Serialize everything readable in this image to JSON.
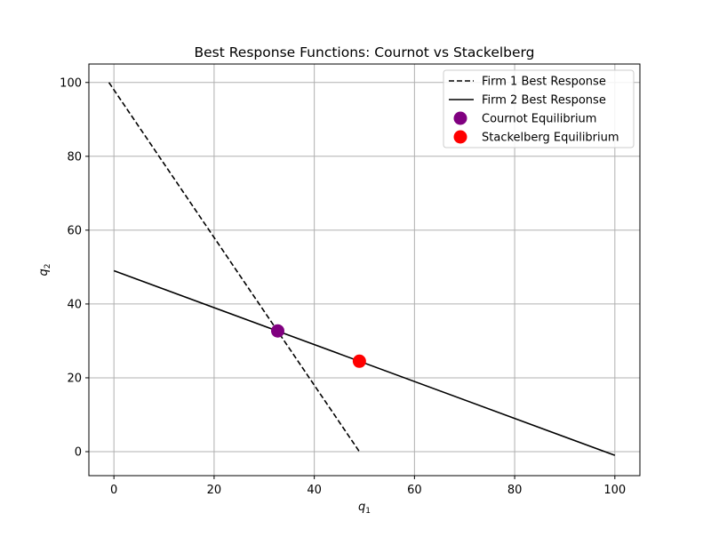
{
  "chart_data": {
    "type": "line",
    "title": "Best Response Functions: Cournot vs Stackelberg",
    "xlabel": "q",
    "xlabel_sub": "1",
    "ylabel": "q",
    "ylabel_sub": "2",
    "xlim": [
      -5,
      105
    ],
    "ylim": [
      -6.5,
      105
    ],
    "xticks": [
      0,
      20,
      40,
      60,
      80,
      100
    ],
    "yticks": [
      0,
      20,
      40,
      60,
      80,
      100
    ],
    "grid": true,
    "legend_position": "top-right",
    "series": [
      {
        "name": "Firm 1 Best Response",
        "kind": "line",
        "style": "dashed",
        "color": "#000000",
        "x": [
          -1,
          49
        ],
        "y": [
          100,
          0
        ]
      },
      {
        "name": "Firm 2 Best Response",
        "kind": "line",
        "style": "solid",
        "color": "#000000",
        "x": [
          0,
          100
        ],
        "y": [
          49,
          -1
        ]
      },
      {
        "name": "Cournot Equilibrium",
        "kind": "scatter",
        "color": "#800080",
        "x": [
          32.7
        ],
        "y": [
          32.7
        ]
      },
      {
        "name": "Stackelberg Equilibrium",
        "kind": "scatter",
        "color": "#ff0000",
        "x": [
          49
        ],
        "y": [
          24.5
        ]
      }
    ]
  }
}
